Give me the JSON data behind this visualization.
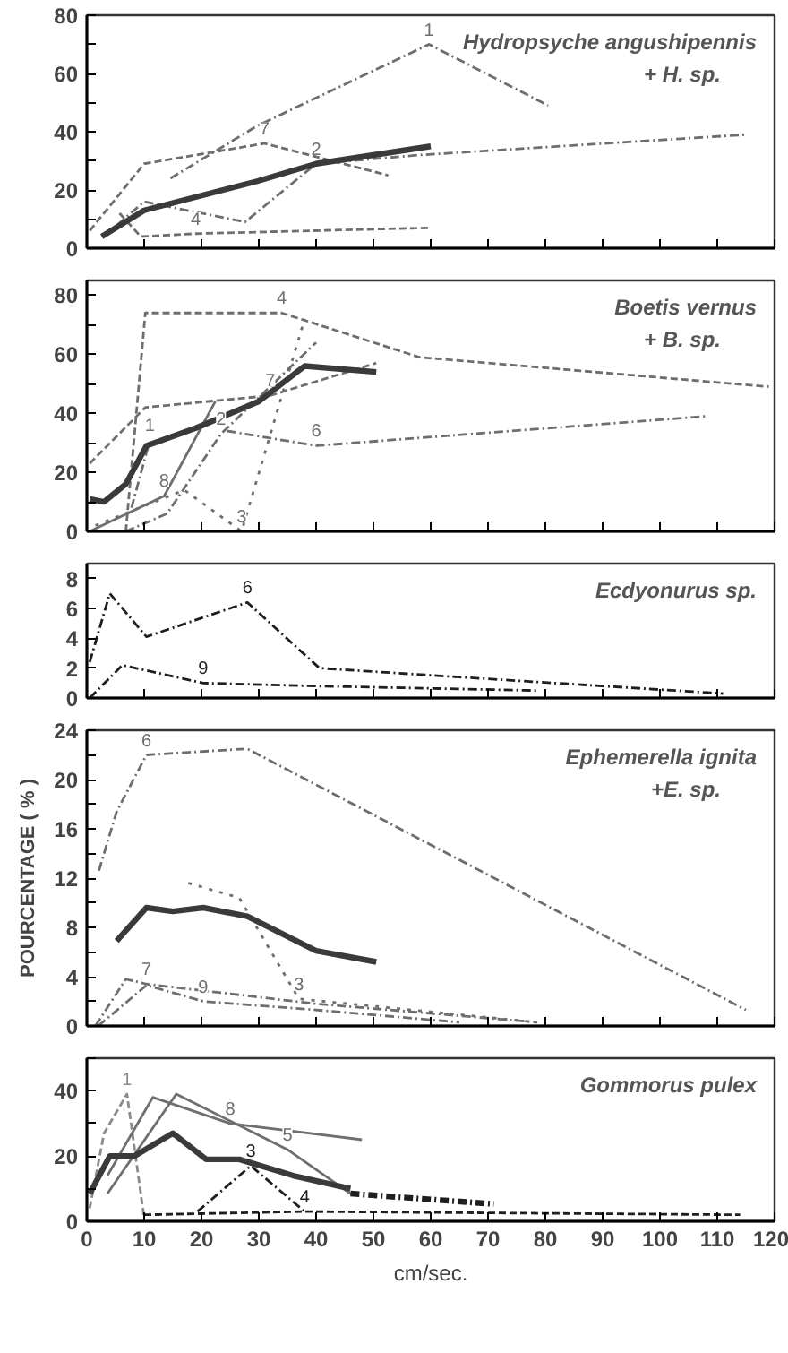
{
  "chart_data": [
    {
      "type": "line",
      "annotations": [
        "Hydropsyche angushipennis",
        "+ H. sp."
      ],
      "xlim": [
        0,
        120
      ],
      "xticks": [
        0,
        10,
        20,
        30,
        40,
        50,
        60,
        70,
        80,
        90,
        100,
        110,
        120
      ],
      "ylim": [
        0,
        80
      ],
      "yticks": [
        0,
        {
          "value": 10,
          "label": null
        },
        20,
        {
          "value": 30,
          "label": null
        },
        40,
        {
          "value": 50,
          "label": null
        },
        60,
        {
          "value": 70,
          "label": null
        },
        80
      ],
      "tick_labels": "y",
      "series": [
        {
          "name": "1",
          "color": "#6e6e6e",
          "line_style": "dashdot",
          "x": [
            14.6,
            29.7,
            59.7,
            80.5
          ],
          "values": [
            24,
            42,
            70,
            49
          ]
        },
        {
          "name": "2",
          "color": "#6e6e6e",
          "line_style": "dashdot",
          "x": [
            3,
            10,
            27.6,
            40,
            58,
            115
          ],
          "values": [
            4,
            16,
            9,
            29,
            32,
            39
          ]
        },
        {
          "name": "7",
          "color": "#6e6e6e",
          "line_style": "dashed",
          "x": [
            0.5,
            10,
            31,
            52.6
          ],
          "values": [
            6,
            29,
            36,
            25
          ]
        },
        {
          "name": "4",
          "color": "#6e6e6e",
          "line_style": "dashed",
          "x": [
            5.7,
            9.4,
            19,
            60
          ],
          "values": [
            12,
            4,
            5,
            7
          ]
        },
        {
          "color": "#3a3a3a",
          "line_style": "solid",
          "x": [
            2.6,
            10,
            29.7,
            40,
            60
          ],
          "values": [
            4,
            13,
            23,
            29,
            35
          ]
        }
      ]
    },
    {
      "type": "line",
      "annotations": [
        "Boetis vernus",
        "+ B. sp."
      ],
      "xlim": [
        0,
        120
      ],
      "xticks": [
        0,
        10,
        20,
        30,
        40,
        50,
        60,
        70,
        80,
        90,
        100,
        110,
        120
      ],
      "ylim": [
        0,
        85
      ],
      "yticks": [
        0,
        {
          "value": 10,
          "label": null
        },
        20,
        {
          "value": 30,
          "label": null
        },
        40,
        {
          "value": 50,
          "label": null
        },
        60,
        {
          "value": 70,
          "label": null
        },
        80
      ],
      "tick_labels": "y",
      "series": [
        {
          "name": "4",
          "color": "#6e6e6e",
          "line_style": "dashed",
          "x": [
            6.8,
            10.2,
            34,
            58,
            119
          ],
          "values": [
            0,
            74,
            74,
            59,
            49
          ]
        },
        {
          "name": "7",
          "color": "#6e6e6e",
          "line_style": "dashed",
          "x": [
            0.5,
            10.2,
            32,
            50.5
          ],
          "values": [
            23,
            42,
            46,
            57
          ]
        },
        {
          "name": "1",
          "color": "#6e6e6e",
          "line_style": "dashdot",
          "x": [
            7.8,
            11
          ],
          "values": [
            8,
            31
          ]
        },
        {
          "name": "6",
          "color": "#6e6e6e",
          "line_style": "dashdot",
          "x": [
            24.5,
            40,
            108
          ],
          "values": [
            34,
            29,
            39
          ]
        },
        {
          "name": "8",
          "color": "#6e6e6e",
          "line_style": "solid",
          "x": [
            0.5,
            13.5,
            22.4
          ],
          "values": [
            0,
            12,
            44
          ]
        },
        {
          "name": "2",
          "color": "#6e6e6e",
          "line_style": "dashdot",
          "x": [
            6.8,
            14,
            23.4,
            40
          ],
          "values": [
            0,
            6,
            33,
            64
          ]
        },
        {
          "name": "3",
          "color": "#6e6e6e",
          "line_style": "dotted",
          "x": [
            1.5,
            17,
            27,
            38
          ],
          "values": [
            2,
            14,
            0,
            72
          ]
        },
        {
          "color": "#3a3a3a",
          "line_style": "solid",
          "x": [
            0.5,
            3,
            6.8,
            10.4,
            19,
            30,
            38,
            50.5
          ],
          "values": [
            11,
            10,
            16,
            29,
            35,
            44,
            56,
            54
          ]
        }
      ]
    },
    {
      "type": "line",
      "annotations": [
        "Ecdyonurus sp."
      ],
      "xlim": [
        0,
        120
      ],
      "xticks": [
        0,
        10,
        20,
        30,
        40,
        50,
        60,
        70,
        80,
        90,
        100,
        110,
        120
      ],
      "ylim": [
        0,
        9
      ],
      "yticks": [
        0,
        2,
        4,
        6,
        8
      ],
      "tick_labels": "y",
      "series": [
        {
          "name": "6",
          "color": "#1e1e1e",
          "line_style": "dashdot",
          "x": [
            0.5,
            4,
            10.4,
            28,
            40.6,
            65,
            111
          ],
          "values": [
            2.4,
            7,
            4.1,
            6.4,
            2,
            1.4,
            0.3
          ]
        },
        {
          "name": "9",
          "color": "#1e1e1e",
          "line_style": "dashdot",
          "x": [
            0.5,
            6.2,
            20.3,
            40,
            78.6
          ],
          "values": [
            0,
            2.2,
            1,
            0.8,
            0.5
          ]
        }
      ]
    },
    {
      "type": "line",
      "ylabel": "POURCENTAGE ( % )",
      "annotations": [
        "Ephemerella ignita",
        "+E. sp."
      ],
      "xlim": [
        0,
        120
      ],
      "xticks": [
        0,
        10,
        20,
        30,
        40,
        50,
        60,
        70,
        80,
        90,
        100,
        110,
        120
      ],
      "ylim": [
        0,
        24
      ],
      "yticks": [
        0,
        {
          "value": 2,
          "label": null
        },
        4,
        {
          "value": 6,
          "label": null
        },
        8,
        {
          "value": 10,
          "label": null
        },
        12,
        {
          "value": 14,
          "label": null
        },
        16,
        {
          "value": 18,
          "label": null
        },
        20,
        {
          "value": 22,
          "label": null
        },
        24
      ],
      "tick_labels": "y",
      "series": [
        {
          "name": "6",
          "color": "#6e6e6e",
          "line_style": "dashdot",
          "x": [
            2.1,
            5.2,
            10.4,
            28,
            115
          ],
          "values": [
            12.6,
            17.4,
            22,
            22.5,
            1.3
          ]
        },
        {
          "name": "3",
          "color": "#6e6e6e",
          "line_style": "dotted",
          "x": [
            17.7,
            26.6,
            37,
            78.6
          ],
          "values": [
            11.6,
            10.4,
            2.2,
            0.3
          ]
        },
        {
          "color": "#3a3a3a",
          "line_style": "solid",
          "x": [
            5.2,
            10.4,
            15,
            20.3,
            28,
            40,
            50.5
          ],
          "values": [
            6.9,
            9.6,
            9.3,
            9.6,
            8.9,
            6.1,
            5.2
          ]
        },
        {
          "name": "7",
          "color": "#6e6e6e",
          "line_style": "dashdot",
          "x": [
            1.5,
            6.8,
            10.4,
            40,
            78.6
          ],
          "values": [
            0,
            3.8,
            3.4,
            1.8,
            0.3
          ]
        },
        {
          "name": "9",
          "color": "#6e6e6e",
          "line_style": "dashdot",
          "x": [
            2,
            10.4,
            20.3,
            40,
            65
          ],
          "values": [
            0,
            3.3,
            2,
            1.3,
            0.3
          ]
        }
      ]
    },
    {
      "type": "line",
      "xlabel": "cm/sec.",
      "annotations": [
        "Gommorus pulex"
      ],
      "xlim": [
        0,
        120
      ],
      "xticks": [
        0,
        10,
        20,
        30,
        40,
        50,
        60,
        70,
        80,
        90,
        100,
        110,
        120
      ],
      "ylim": [
        0,
        50
      ],
      "yticks": [
        0,
        {
          "value": 10,
          "label": null
        },
        20,
        {
          "value": 30,
          "label": null
        },
        40,
        {
          "value": 50,
          "label": null
        }
      ],
      "series": [
        {
          "name": "1",
          "color": "#8a8a8a",
          "line_style": "dashed",
          "x": [
            0.5,
            3,
            7,
            10
          ],
          "values": [
            4,
            27,
            39,
            1
          ]
        },
        {
          "name": "5",
          "color": "#6e6e6e",
          "line_style": "solid",
          "x": [
            3.6,
            15.6,
            35,
            46
          ],
          "values": [
            8.5,
            39,
            22,
            8.5
          ]
        },
        {
          "name": "8",
          "color": "#6e6e6e",
          "line_style": "solid",
          "x": [
            3.6,
            11.5,
            25,
            48
          ],
          "values": [
            14,
            38,
            30,
            25
          ]
        },
        {
          "color": "#3a3a3a",
          "line_style": "solid",
          "x": [
            0.5,
            4,
            8.3,
            15,
            20.8,
            26.6,
            36,
            46
          ],
          "values": [
            8.5,
            20,
            20,
            27,
            19,
            19,
            14,
            10
          ]
        },
        {
          "name": "4",
          "color": "#1e1e1e",
          "line_style": "dashed",
          "x": [
            10,
            38,
            114
          ],
          "values": [
            2,
            3,
            2
          ]
        },
        {
          "name": "3",
          "color": "#1e1e1e",
          "line_style": "dashdot",
          "x": [
            19.3,
            28.6,
            38
          ],
          "values": [
            3,
            17,
            3
          ]
        },
        {
          "color": "#1e1e1e",
          "line_style": "dashdot",
          "x": [
            46,
            71
          ],
          "values": [
            8.5,
            5.3
          ]
        }
      ]
    }
  ]
}
